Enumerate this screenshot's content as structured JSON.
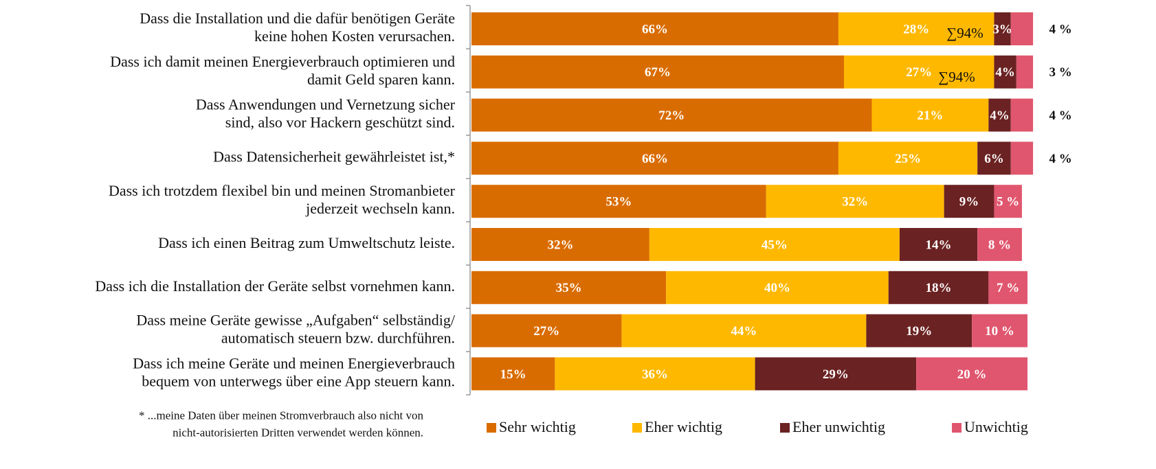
{
  "chart_data": {
    "type": "stacked_barh",
    "categories": [
      "Dass die Installation und die dafür benötigen Geräte\nkeine hohen Kosten verursachen.",
      "Dass ich damit meinen Energieverbrauch optimieren und\ndamit Geld sparen kann.",
      "Dass Anwendungen und Vernetzung sicher\nsind, also vor Hackern geschützt sind.",
      "Dass Datensicherheit gewährleistet ist,*",
      "Dass ich trotzdem flexibel bin und meinen Stromanbieter\njederzeit wechseln kann.",
      "Dass ich einen Beitrag zum Umweltschutz leiste.",
      "Dass ich die Installation der Geräte selbst vornehmen kann.",
      "Dass meine Geräte gewisse „Aufgaben“  selbständig/\nautomatisch steuern bzw. durchführen.",
      "Dass ich meine Geräte und meinen Energieverbrauch\nbequem von unterwegs über eine App steuern kann."
    ],
    "series": [
      {
        "name": "Sehr wichtig",
        "color": "#d96c00",
        "values": [
          66,
          67,
          72,
          66,
          53,
          32,
          35,
          27,
          15
        ],
        "value_labels": [
          "66%",
          "67%",
          "72%",
          "66%",
          "53%",
          "32%",
          "35%",
          "27%",
          "15%"
        ]
      },
      {
        "name": "Eher wichtig",
        "color": "#ffb800",
        "values": [
          28,
          27,
          21,
          25,
          32,
          45,
          40,
          44,
          36
        ],
        "value_labels": [
          "28%",
          "27%",
          "21%",
          "25%",
          "32%",
          "45%",
          "40%",
          "44%",
          "36%"
        ]
      },
      {
        "name": "Eher unwichtig",
        "color": "#6b2222",
        "values": [
          3,
          4,
          4,
          6,
          9,
          14,
          18,
          19,
          29
        ],
        "value_labels": [
          "3%",
          "4%",
          "4%",
          "6%",
          "9%",
          "14%",
          "18%",
          "19%",
          "29%"
        ]
      },
      {
        "name": "Unwichtig",
        "color": "#e0566e",
        "values": [
          4,
          3,
          4,
          4,
          5,
          8,
          7,
          10,
          20
        ],
        "value_labels": [
          "4 %",
          "3 %",
          "4 %",
          "4 %",
          "5 %",
          "8 %",
          "7 %",
          "10 %",
          "20 %"
        ]
      }
    ],
    "annotations": [
      "∑94%",
      "∑94%"
    ],
    "footnote": "* ...meine Daten über meinen Stromverbrauch  also nicht von\nnicht-autorisierten Dritten verwendet werden können.",
    "legend": "bottom"
  }
}
